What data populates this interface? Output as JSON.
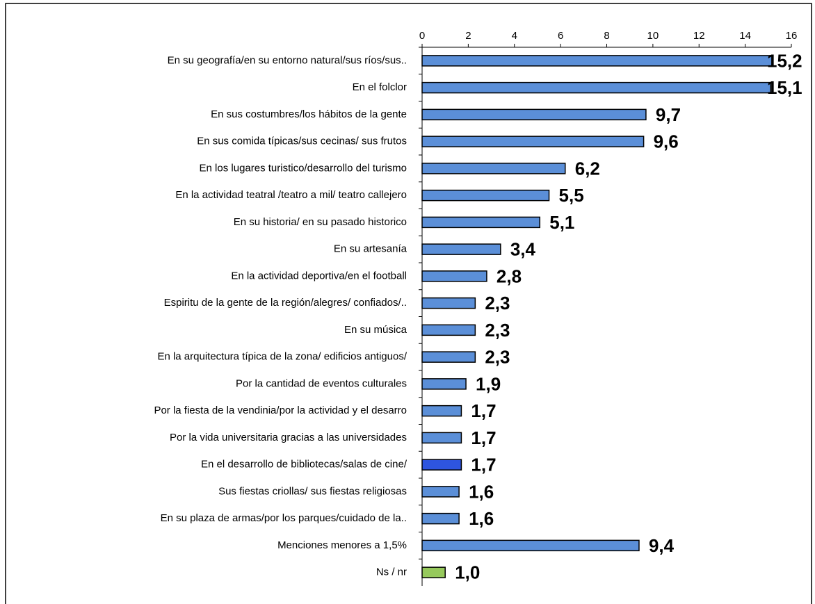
{
  "chart_data": {
    "type": "bar",
    "orientation": "horizontal",
    "categories": [
      "En su geografía/en su entorno natural/sus ríos/sus..",
      "En el folclor",
      "En sus costumbres/los hábitos de la gente",
      "En sus comida típicas/sus cecinas/ sus frutos",
      "En los lugares turistico/desarrollo del turismo",
      "En la actividad teatral /teatro a mil/ teatro callejero",
      "En su historia/ en su pasado historico",
      "En su artesanía",
      "En la actividad deportiva/en el football",
      "Espiritu de la gente de la región/alegres/ confiados/..",
      "En su música",
      "En la arquitectura típica de la zona/ edificios antiguos/",
      "Por la cantidad de eventos culturales",
      "Por la fiesta de la vendinia/por la actividad y el desarro",
      "Por la vida universitaria gracias a las universidades",
      "En el desarrollo de bibliotecas/salas de cine/",
      "Sus fiestas criollas/ sus fiestas religiosas",
      "En su plaza de armas/por los parques/cuidado de la..",
      "Menciones menores a 1,5%",
      "Ns / nr"
    ],
    "values": [
      15.2,
      15.1,
      9.7,
      9.6,
      6.2,
      5.5,
      5.1,
      3.4,
      2.8,
      2.3,
      2.3,
      2.3,
      1.9,
      1.7,
      1.7,
      1.7,
      1.6,
      1.6,
      9.4,
      1.0
    ],
    "value_labels": [
      "15,2",
      "15,1",
      "9,7",
      "9,6",
      "6,2",
      "5,5",
      "5,1",
      "3,4",
      "2,8",
      "2,3",
      "2,3",
      "2,3",
      "1,9",
      "1,7",
      "1,7",
      "1,7",
      "1,6",
      "1,6",
      "9,4",
      "1,0"
    ],
    "colors": [
      "#5b8fd8",
      "#5b8fd8",
      "#5b8fd8",
      "#5b8fd8",
      "#5b8fd8",
      "#5b8fd8",
      "#5b8fd8",
      "#5b8fd8",
      "#5b8fd8",
      "#5b8fd8",
      "#5b8fd8",
      "#5b8fd8",
      "#5b8fd8",
      "#5b8fd8",
      "#5b8fd8",
      "#2e55e0",
      "#5b8fd8",
      "#5b8fd8",
      "#5b8fd8",
      "#96c95c"
    ],
    "xlim": [
      0,
      16
    ],
    "xticks": [
      0,
      2,
      4,
      6,
      8,
      10,
      12,
      14,
      16
    ]
  }
}
